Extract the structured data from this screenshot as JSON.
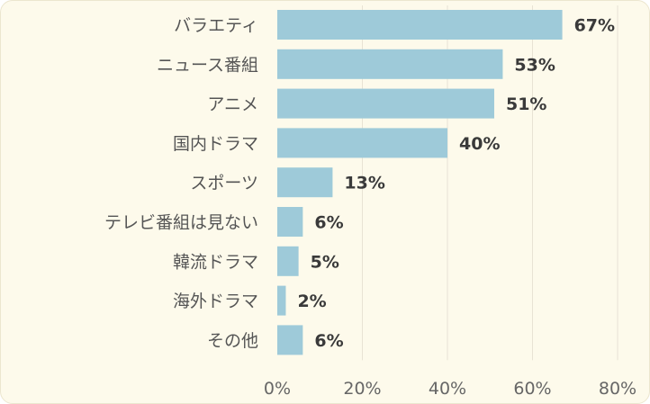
{
  "chart_data": {
    "type": "bar",
    "orientation": "horizontal",
    "categories": [
      "バラエティ",
      "ニュース番組",
      "アニメ",
      "国内ドラマ",
      "スポーツ",
      "テレビ番組は見ない",
      "韓流ドラマ",
      "海外ドラマ",
      "その他"
    ],
    "values": [
      67,
      53,
      51,
      40,
      13,
      6,
      5,
      2,
      6
    ],
    "value_labels": [
      "67%",
      "53%",
      "51%",
      "40%",
      "13%",
      "6%",
      "5%",
      "2%",
      "6%"
    ],
    "xlim": [
      0,
      80
    ],
    "x_ticks": [
      0,
      20,
      40,
      60,
      80
    ],
    "x_tick_labels": [
      "0%",
      "20%",
      "40%",
      "60%",
      "80%"
    ],
    "grid": true,
    "legend": "none",
    "colors": {
      "bar": "#9ecad9",
      "background": "#fdfaeb",
      "grid": "#e8e3d4"
    }
  }
}
